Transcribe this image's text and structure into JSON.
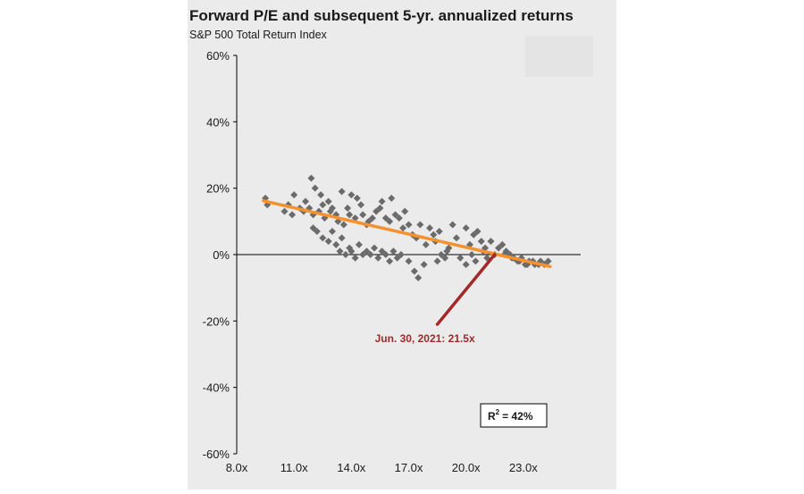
{
  "chart_data": {
    "type": "scatter",
    "title": "Forward P/E and subsequent 5-yr. annualized returns",
    "subtitle": "S&P 500 Total Return Index",
    "xlabel": "",
    "ylabel": "",
    "xlim": [
      8.0,
      26.0
    ],
    "ylim": [
      -60,
      60
    ],
    "x_ticks": [
      "8.0x",
      "11.0x",
      "14.0x",
      "17.0x",
      "20.0x",
      "23.0x"
    ],
    "x_tick_values": [
      8,
      11,
      14,
      17,
      20,
      23
    ],
    "y_ticks": [
      "60%",
      "40%",
      "20%",
      "0%",
      "-20%",
      "-40%",
      "-60%"
    ],
    "y_tick_values": [
      60,
      40,
      20,
      0,
      -20,
      -40,
      -60
    ],
    "trendline": {
      "x": [
        9.4,
        24.4
      ],
      "y": [
        16.2,
        -3.6
      ],
      "color": "#f5922d"
    },
    "annotation": {
      "label": "Jun. 30, 2021: 21.5x",
      "from": [
        18.5,
        -21
      ],
      "to": [
        21.5,
        0
      ],
      "color": "#a3282a"
    },
    "r_squared": {
      "label": "R",
      "sup": "2",
      "text": "= 42%"
    },
    "colors": {
      "points": "#6b6b6b",
      "axis": "#000000",
      "panel": "#ebebeb"
    },
    "series": [
      {
        "name": "5-yr. annualized returns",
        "x": [
          9.5,
          9.6,
          10.5,
          10.7,
          10.9,
          11.0,
          11.3,
          11.5,
          11.6,
          11.8,
          11.9,
          12.0,
          12.1,
          12.3,
          12.4,
          12.5,
          12.6,
          12.8,
          12.9,
          13.0,
          13.2,
          13.3,
          13.5,
          13.6,
          13.8,
          13.9,
          14.0,
          14.2,
          14.3,
          14.5,
          14.6,
          14.8,
          14.9,
          15.1,
          15.3,
          15.5,
          15.6,
          15.8,
          16.0,
          16.1,
          16.3,
          16.5,
          16.7,
          16.8,
          17.0,
          12.0,
          12.2,
          12.5,
          12.8,
          13.0,
          13.2,
          13.4,
          13.5,
          13.7,
          13.9,
          14.0,
          14.2,
          14.4,
          14.6,
          14.8,
          15.0,
          15.2,
          15.4,
          15.6,
          15.8,
          16.0,
          16.2,
          16.4,
          16.6,
          17.0,
          17.3,
          17.5,
          17.8,
          17.2,
          17.4,
          17.6,
          17.9,
          18.1,
          18.3,
          18.5,
          18.7,
          18.9,
          19.1,
          18.4,
          18.6,
          19.0,
          19.3,
          19.5,
          19.7,
          20.0,
          20.2,
          20.4,
          20.6,
          20.8,
          21.0,
          20.0,
          20.3,
          20.5,
          20.9,
          21.1,
          21.3,
          21.5,
          21.7,
          21.9,
          22.1,
          22.3,
          22.5,
          22.7,
          22.9,
          23.1,
          23.3,
          23.6,
          23.9,
          24.1,
          24.3,
          22.0,
          22.4,
          22.8,
          23.2,
          23.5,
          23.8
        ],
        "y": [
          17,
          15,
          13,
          15,
          12,
          18,
          14,
          13,
          16,
          14,
          23,
          12,
          20,
          13,
          18,
          15,
          11,
          16,
          13,
          14,
          12,
          10,
          19,
          9,
          14,
          12,
          18,
          11,
          17,
          15,
          12,
          9,
          10,
          11,
          13,
          14,
          16,
          11,
          10,
          17,
          12,
          11,
          8,
          13,
          9,
          8,
          7,
          5,
          4,
          7,
          3,
          1,
          5,
          0,
          2,
          1,
          -1,
          3,
          0,
          1,
          0,
          2,
          -1,
          1,
          0,
          -2,
          1,
          -1,
          0,
          -2,
          -5,
          -7,
          -3,
          6,
          5,
          9,
          3,
          8,
          6,
          -2,
          0,
          -1,
          2,
          4,
          7,
          1,
          9,
          5,
          -1,
          8,
          3,
          6,
          7,
          4,
          2,
          -3,
          0,
          -2,
          1,
          -1,
          4,
          0,
          2,
          3,
          1,
          0,
          -1,
          -2,
          -1,
          -3,
          -2,
          -3,
          -2,
          -3,
          -2,
          0,
          -1,
          -2,
          -3,
          -2,
          -3
        ]
      }
    ]
  }
}
